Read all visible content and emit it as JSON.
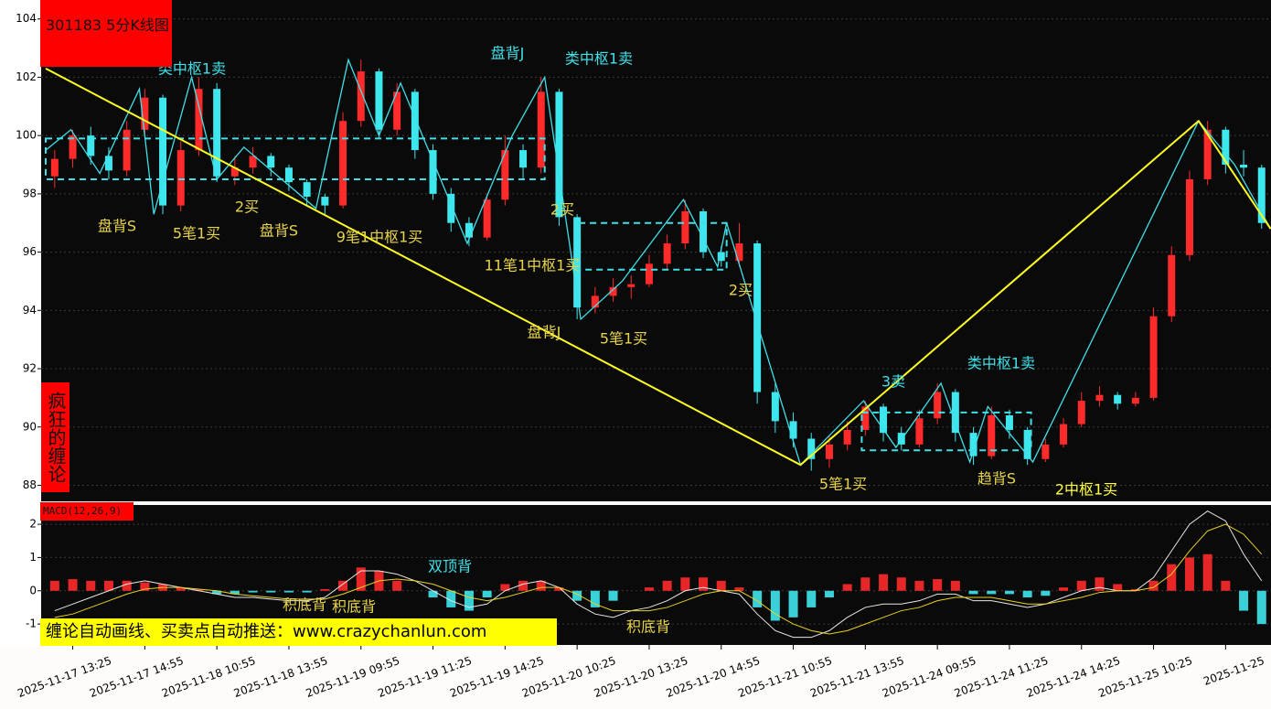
{
  "chart_data": [
    {
      "type": "candlestick",
      "title": "301183 5分K线图",
      "side_label": "疯狂的缠论",
      "categories": [
        null,
        "2025-11-17 13:25",
        null,
        null,
        null,
        "2025-11-17 14:55",
        null,
        null,
        null,
        "2025-11-18 10:55",
        null,
        null,
        null,
        "2025-11-18 13:55",
        null,
        null,
        null,
        "2025-11-19 09:55",
        null,
        null,
        null,
        "2025-11-19 11:25",
        null,
        null,
        null,
        "2025-11-19 14:25",
        null,
        null,
        null,
        "2025-11-20 10:25",
        null,
        null,
        null,
        "2025-11-20 13:25",
        null,
        null,
        null,
        "2025-11-20 14:55",
        null,
        null,
        null,
        "2025-11-21 10:55",
        null,
        null,
        null,
        "2025-11-21 13:55",
        null,
        null,
        null,
        "2025-11-24 09:55",
        null,
        null,
        null,
        "2025-11-24 11:25",
        null,
        null,
        null,
        "2025-11-24 14:25",
        null,
        null,
        null,
        "2025-11-25 10:25",
        null,
        null,
        null,
        "2025-11-25",
        null,
        null
      ],
      "open": [
        98.6,
        99.2,
        100.0,
        99.3,
        98.8,
        100.2,
        101.3,
        97.6,
        99.5,
        101.6,
        98.6,
        98.9,
        99.3,
        98.9,
        98.4,
        97.9,
        97.6,
        100.5,
        102.2,
        100.2,
        101.5,
        99.5,
        98.0,
        97.0,
        96.5,
        97.8,
        99.5,
        98.9,
        101.5,
        97.2,
        94.1,
        94.5,
        94.8,
        94.9,
        95.6,
        96.3,
        97.4,
        96.0,
        95.7,
        96.3,
        91.2,
        90.2,
        89.6,
        88.9,
        89.4,
        89.9,
        90.7,
        89.8,
        89.4,
        90.3,
        91.2,
        89.8,
        89.0,
        90.4,
        89.9,
        88.9,
        89.4,
        90.1,
        90.9,
        91.1,
        90.8,
        91.0,
        93.8,
        95.9,
        98.5,
        100.2,
        99.0,
        98.9
      ],
      "high": [
        99.5,
        100.2,
        100.3,
        99.6,
        100.5,
        101.6,
        101.4,
        99.8,
        102.0,
        101.8,
        99.3,
        99.6,
        99.4,
        99.0,
        98.5,
        98.0,
        100.8,
        102.6,
        102.3,
        101.8,
        101.6,
        99.7,
        98.2,
        97.2,
        98.0,
        100.0,
        99.7,
        102.0,
        101.6,
        97.3,
        94.8,
        95.1,
        95.2,
        95.9,
        96.6,
        97.8,
        97.5,
        96.2,
        97.0,
        96.4,
        91.5,
        90.5,
        89.8,
        89.7,
        90.2,
        90.9,
        90.8,
        90.0,
        90.6,
        91.5,
        91.3,
        90.0,
        90.7,
        90.6,
        90.0,
        89.6,
        90.3,
        91.2,
        91.4,
        91.2,
        91.2,
        94.1,
        96.2,
        98.8,
        100.5,
        100.3,
        99.5,
        99.0
      ],
      "low": [
        98.2,
        98.9,
        99.0,
        98.5,
        98.6,
        99.9,
        97.3,
        97.4,
        99.3,
        98.4,
        98.3,
        98.7,
        98.6,
        98.1,
        97.6,
        97.3,
        97.5,
        100.3,
        99.9,
        100.0,
        99.2,
        97.8,
        96.7,
        96.2,
        96.4,
        97.6,
        98.5,
        98.7,
        96.9,
        93.7,
        93.9,
        94.3,
        94.4,
        94.8,
        95.4,
        96.1,
        95.8,
        95.5,
        95.5,
        90.8,
        89.8,
        89.3,
        88.5,
        88.6,
        89.2,
        89.7,
        89.5,
        89.2,
        89.3,
        90.1,
        89.5,
        88.7,
        88.9,
        89.6,
        88.7,
        88.8,
        89.3,
        90.0,
        90.7,
        90.6,
        90.7,
        90.9,
        93.6,
        95.7,
        98.3,
        98.7,
        98.6,
        96.8
      ],
      "close": [
        99.2,
        100.0,
        99.3,
        98.8,
        100.2,
        101.3,
        97.6,
        99.5,
        101.6,
        98.6,
        98.9,
        99.3,
        98.9,
        98.4,
        97.9,
        97.6,
        100.5,
        102.2,
        100.2,
        101.5,
        99.5,
        98.0,
        97.0,
        96.5,
        97.8,
        99.5,
        98.9,
        101.5,
        97.2,
        94.1,
        94.5,
        94.8,
        94.9,
        95.6,
        96.3,
        97.4,
        96.0,
        95.7,
        96.3,
        91.2,
        90.2,
        89.6,
        88.9,
        89.4,
        89.9,
        90.7,
        89.8,
        89.4,
        90.3,
        91.2,
        89.8,
        89.0,
        90.4,
        89.9,
        88.9,
        89.4,
        90.1,
        90.9,
        91.1,
        90.8,
        91.0,
        93.8,
        95.9,
        98.5,
        100.2,
        99.0,
        98.9,
        97.0
      ],
      "up_color": "#ff2a2a",
      "down_color": "#3ee6ee",
      "ylim": [
        87.45,
        104.65
      ],
      "yticks": [
        88,
        90,
        92,
        94,
        96,
        98,
        100,
        102,
        104
      ],
      "grid": true,
      "overlays": {
        "strokes": {
          "color": "#40e0e8",
          "x": [
            -0.5,
            0.9,
            2.5,
            4.7,
            5.5,
            7.6,
            9.0,
            10.5,
            14.5,
            16.3,
            18.0,
            19.2,
            22.9,
            25.4,
            27.2,
            29.2,
            31.5,
            34.9,
            36.8,
            37.3,
            41.4,
            44.9,
            46.7,
            49.2,
            50.8,
            51.8,
            54.3,
            63.5,
            65.5,
            67.5
          ],
          "y": [
            99.5,
            100.2,
            98.7,
            101.6,
            97.3,
            102.0,
            98.5,
            99.6,
            97.5,
            102.6,
            100.0,
            101.8,
            96.3,
            100.0,
            102.0,
            93.7,
            95.0,
            97.8,
            95.5,
            97.0,
            88.7,
            90.9,
            89.3,
            91.5,
            88.8,
            90.7,
            88.8,
            100.5,
            99.0,
            96.8
          ]
        },
        "segments": {
          "color": "#ffff20",
          "x": [
            -0.5,
            41.4,
            63.5,
            67.5
          ],
          "y": [
            102.3,
            88.7,
            100.5,
            96.8
          ]
        },
        "pivots": [
          {
            "color": "#40e0e8",
            "x": [
              -0.5,
              27.2
            ],
            "y": [
              98.5,
              99.9
            ]
          },
          {
            "color": "#40e0e8",
            "x": [
              29.1,
              37.3
            ],
            "y": [
              95.4,
              97.0
            ]
          },
          {
            "color": "#40e0e8",
            "x": [
              44.8,
              54.2
            ],
            "y": [
              89.2,
              90.5
            ]
          }
        ]
      },
      "annotations": [
        {
          "text": "类中枢1卖",
          "color": "#40e0e8"
        },
        {
          "text": "盘背S",
          "color": "#e8d44a"
        },
        {
          "text": "5笔1买",
          "color": "#e8d44a"
        },
        {
          "text": "2买",
          "color": "#e8d44a"
        },
        {
          "text": "盘背S",
          "color": "#e8d44a"
        },
        {
          "text": "9笔1中枢1买",
          "color": "#e8d44a"
        },
        {
          "text": "盘背J",
          "color": "#40e0e8"
        },
        {
          "text": "类中枢1卖",
          "color": "#40e0e8"
        },
        {
          "text": "2买",
          "color": "#e8d44a"
        },
        {
          "text": "11笔1中枢1买",
          "color": "#e8d44a"
        },
        {
          "text": "盘背J",
          "color": "#e8d44a"
        },
        {
          "text": "5笔1买",
          "color": "#e8d44a"
        },
        {
          "text": "2买",
          "color": "#e8d44a"
        },
        {
          "text": "3卖",
          "color": "#40e0e8"
        },
        {
          "text": "类中枢1卖",
          "color": "#40e0e8"
        },
        {
          "text": "5笔1买",
          "color": "#e8d44a"
        },
        {
          "text": "趋背S",
          "color": "#e8d44a"
        },
        {
          "text": "2中枢1买",
          "color": "#ffff40"
        }
      ]
    },
    {
      "type": "macd",
      "title": "MACD(12,26,9)",
      "series": [
        {
          "color": "#e8e8e8",
          "values": [
            -0.6,
            -0.4,
            -0.2,
            0.0,
            0.2,
            0.3,
            0.2,
            0.1,
            0.0,
            -0.1,
            -0.2,
            -0.2,
            -0.25,
            -0.3,
            -0.3,
            -0.2,
            0.2,
            0.6,
            0.6,
            0.5,
            0.3,
            0.0,
            -0.3,
            -0.5,
            -0.4,
            0.0,
            0.2,
            0.3,
            0.1,
            -0.4,
            -0.7,
            -0.8,
            -0.6,
            -0.5,
            -0.3,
            0.0,
            0.1,
            0.0,
            -0.1,
            -0.7,
            -1.2,
            -1.4,
            -1.4,
            -1.2,
            -0.8,
            -0.5,
            -0.4,
            -0.4,
            -0.3,
            -0.1,
            -0.1,
            -0.3,
            -0.3,
            -0.4,
            -0.5,
            -0.4,
            -0.2,
            0.0,
            0.1,
            0.0,
            0.0,
            0.4,
            1.2,
            2.0,
            2.4,
            2.1,
            1.1,
            0.3
          ]
        },
        {
          "color": "#e8d020",
          "values": [
            -0.8,
            -0.7,
            -0.5,
            -0.3,
            -0.1,
            0.05,
            0.1,
            0.1,
            0.05,
            0.0,
            -0.1,
            -0.15,
            -0.2,
            -0.25,
            -0.25,
            -0.25,
            -0.1,
            0.1,
            0.3,
            0.35,
            0.3,
            0.2,
            0.0,
            -0.2,
            -0.3,
            -0.2,
            -0.05,
            0.1,
            0.1,
            -0.1,
            -0.4,
            -0.6,
            -0.6,
            -0.6,
            -0.5,
            -0.3,
            -0.1,
            0.0,
            0.0,
            -0.3,
            -0.7,
            -1.0,
            -1.2,
            -1.3,
            -1.2,
            -1.0,
            -0.8,
            -0.6,
            -0.5,
            -0.3,
            -0.2,
            -0.2,
            -0.2,
            -0.3,
            -0.4,
            -0.4,
            -0.3,
            -0.2,
            -0.05,
            0.0,
            0.0,
            0.1,
            0.5,
            1.2,
            1.8,
            2.0,
            1.7,
            1.1
          ]
        }
      ],
      "histogram": {
        "up_color": "#ff2a2a",
        "down_color": "#3ee6ee",
        "values": [
          0.3,
          0.35,
          0.3,
          0.3,
          0.3,
          0.25,
          0.2,
          0.1,
          0.05,
          -0.1,
          -0.1,
          -0.05,
          -0.05,
          -0.05,
          -0.05,
          0.05,
          0.3,
          0.7,
          0.6,
          0.3,
          0.0,
          -0.2,
          -0.5,
          -0.6,
          -0.2,
          0.2,
          0.3,
          0.3,
          0.1,
          -0.3,
          -0.5,
          -0.3,
          0.0,
          0.1,
          0.3,
          0.4,
          0.4,
          0.3,
          0.1,
          -0.5,
          -0.9,
          -0.8,
          -0.5,
          -0.2,
          0.2,
          0.4,
          0.5,
          0.4,
          0.3,
          0.35,
          0.3,
          -0.1,
          -0.1,
          -0.1,
          -0.2,
          -0.15,
          0.1,
          0.3,
          0.4,
          0.2,
          0.05,
          0.3,
          0.8,
          1.0,
          1.1,
          0.3,
          -0.6,
          -1.0
        ]
      },
      "ylim": [
        -1.63,
        2.58
      ],
      "yticks": [
        -1,
        0,
        1,
        2
      ],
      "grid": true,
      "annotations": [
        {
          "text": "双顶背",
          "color": "#40e0e8"
        },
        {
          "text": "积底背",
          "color": "#e8d44a"
        },
        {
          "text": "积底背",
          "color": "#e8d44a"
        },
        {
          "text": "积底背",
          "color": "#e8d44a"
        }
      ]
    }
  ],
  "banner": "缠论自动画线、买卖点自动推送：www.crazychanlun.com"
}
